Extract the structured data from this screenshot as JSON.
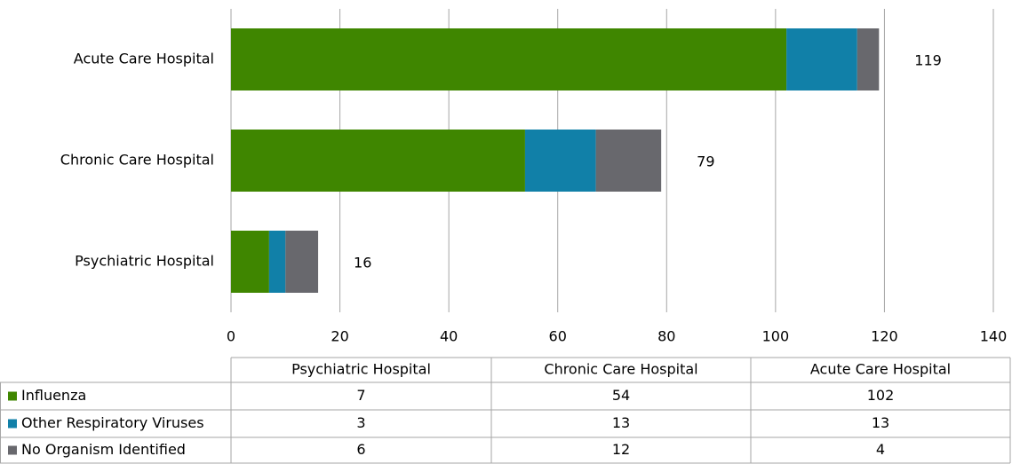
{
  "chart_data": {
    "type": "stacked-bar-horizontal",
    "categories": [
      "Psychiatric Hospital",
      "Chronic Care Hospital",
      "Acute Care Hospital"
    ],
    "series": [
      {
        "name": "Influenza",
        "color": "#3f8600",
        "values": [
          7,
          54,
          102
        ]
      },
      {
        "name": "Other Respiratory Viruses",
        "color": "#1180a8",
        "values": [
          3,
          13,
          13
        ]
      },
      {
        "name": "No Organism Identified",
        "color": "#68686d",
        "values": [
          6,
          12,
          4
        ]
      }
    ],
    "totals": [
      16,
      79,
      119
    ],
    "xlim": [
      0,
      140
    ],
    "xticks": [
      0,
      20,
      40,
      60,
      80,
      100,
      120,
      140
    ],
    "grid": true
  }
}
